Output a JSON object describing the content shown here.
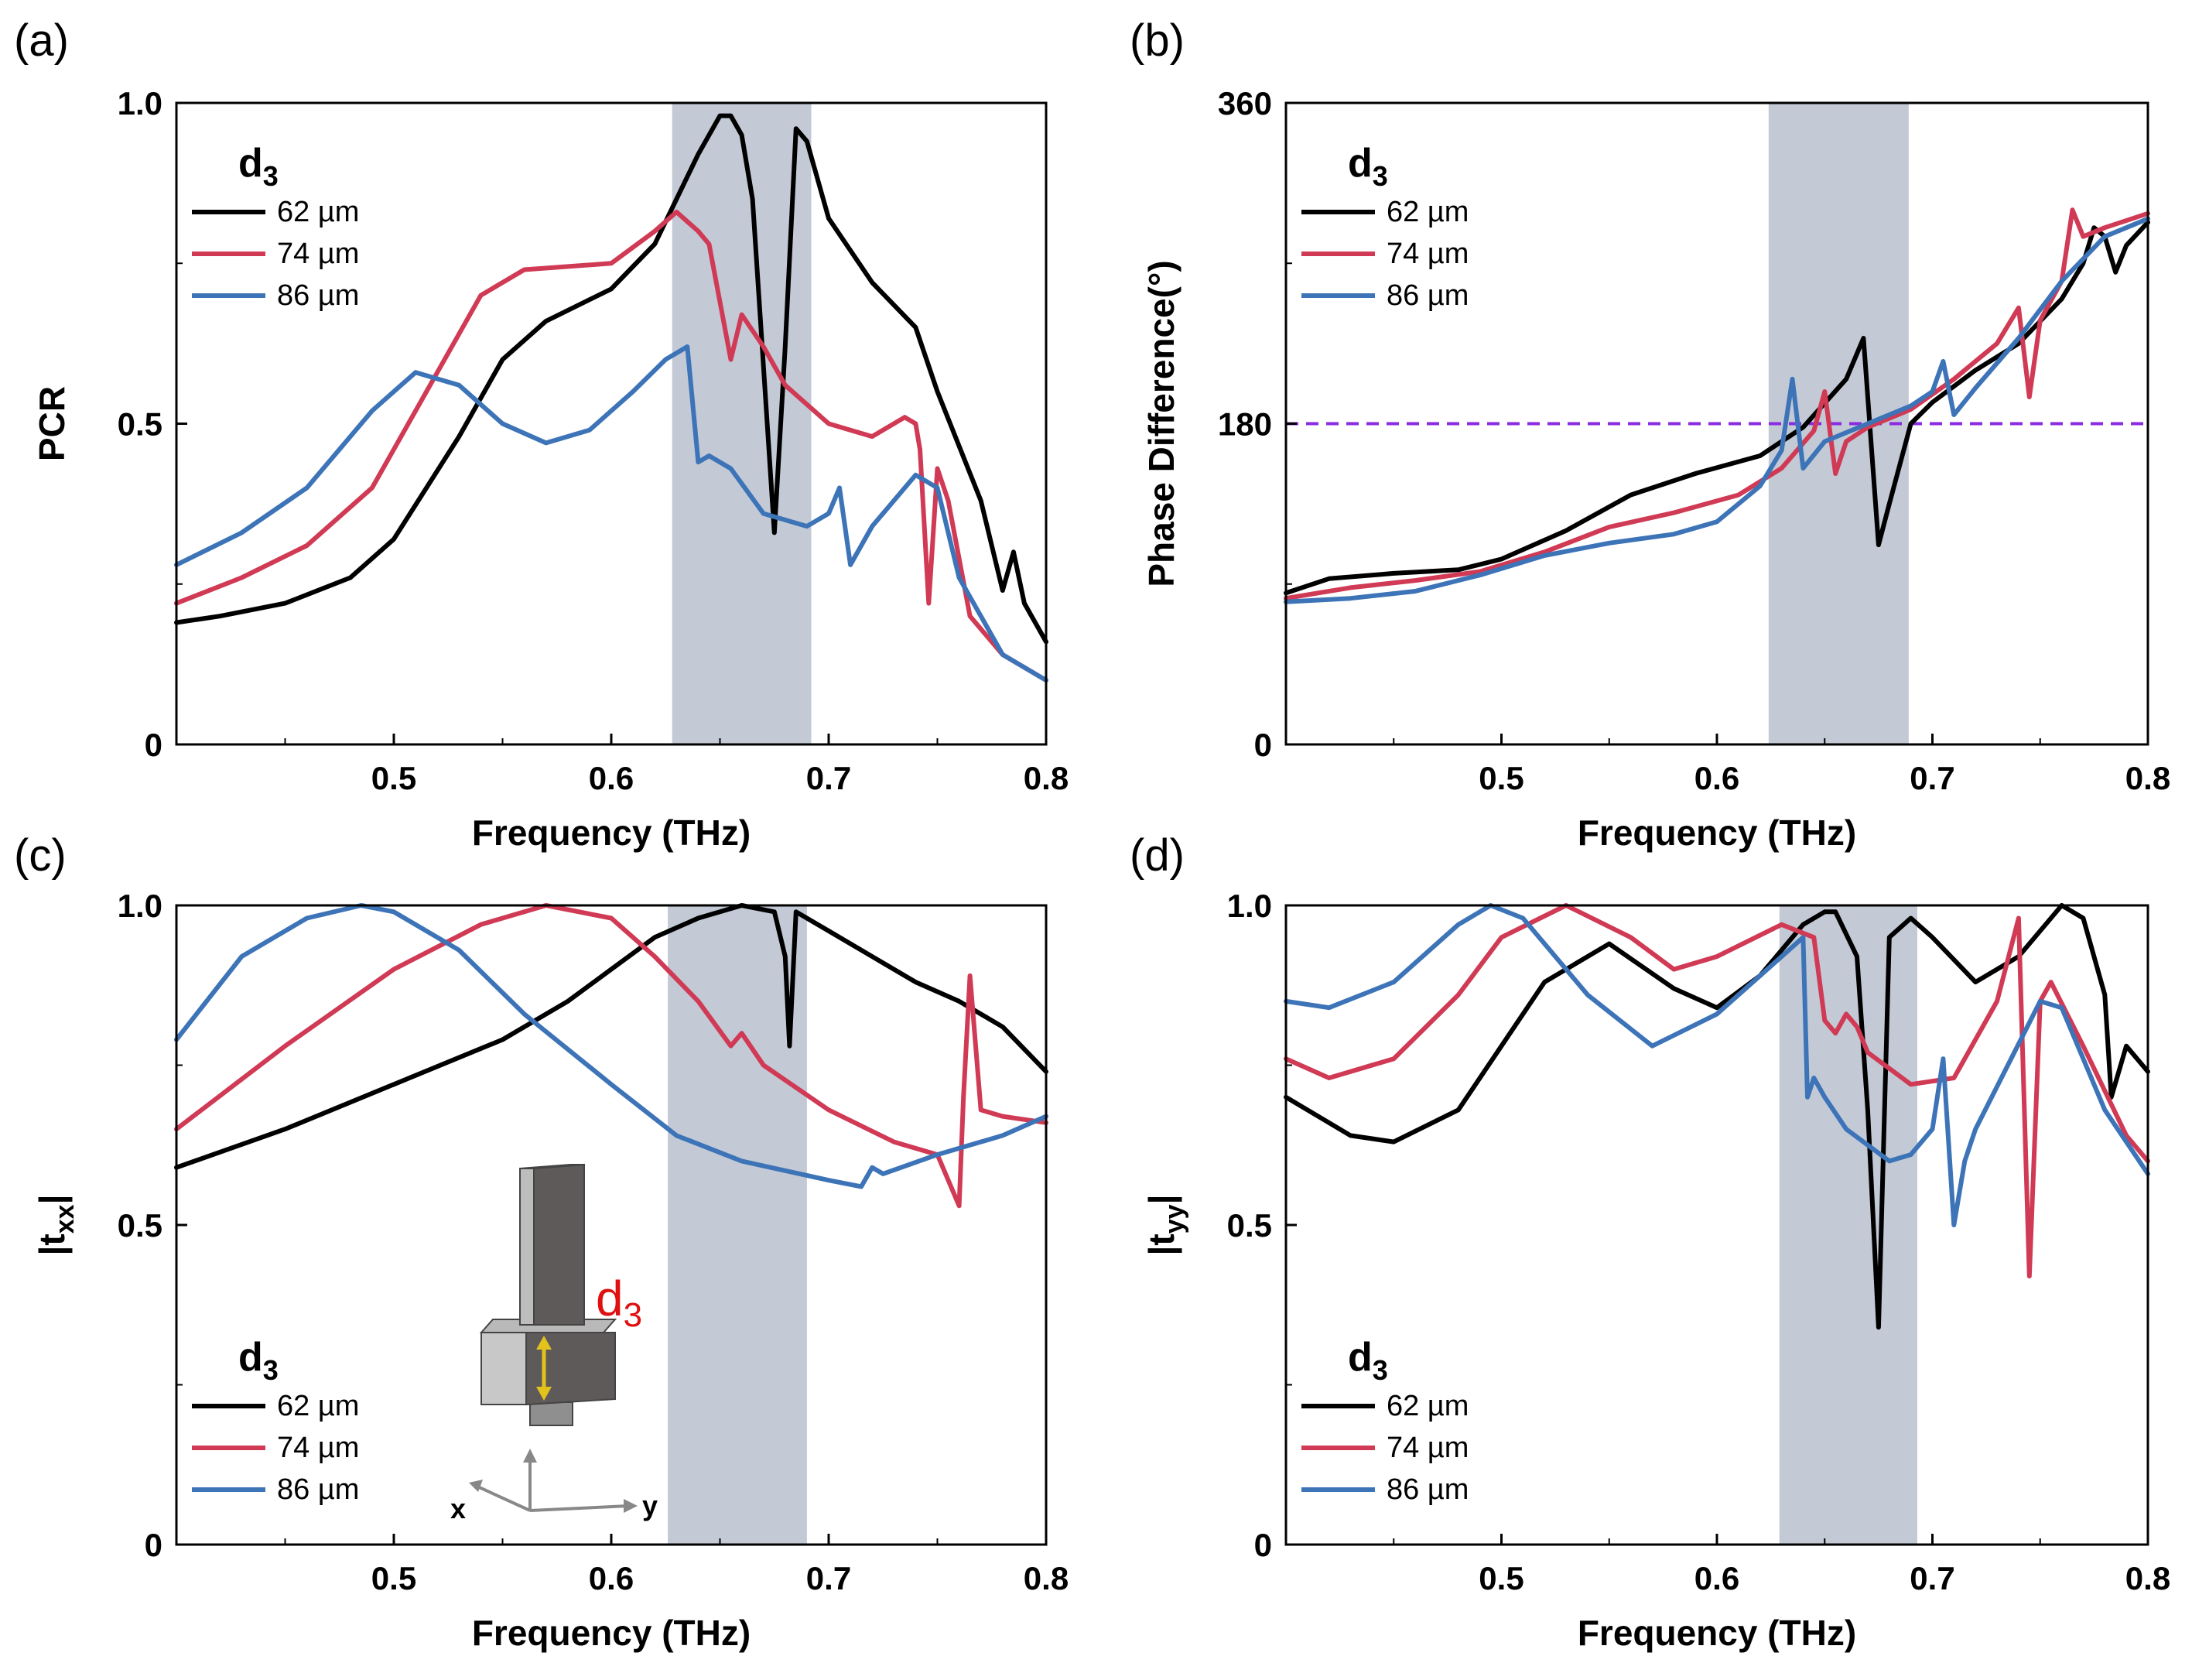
{
  "colors": {
    "s62": "#000000",
    "s74": "#d03a55",
    "s86": "#3d74b8",
    "band": "#c3cad6",
    "ref": "#8a2be2"
  },
  "chart_data": [
    {
      "panel": "(a)",
      "type": "line",
      "xlabel": "Frequency (THz)",
      "ylabel": "PCR",
      "xlim": [
        0.4,
        0.8
      ],
      "ylim": [
        0,
        1
      ],
      "xticks": [
        "0.5",
        "0.6",
        "0.7",
        "0.8"
      ],
      "yticks": [
        "0",
        "0.5",
        "1.0"
      ],
      "ytick_values": [
        0,
        0.5,
        1.0
      ],
      "band": [
        0.628,
        0.692
      ],
      "legend": {
        "title_main": "d",
        "title_sub": "3",
        "position": "top-left"
      },
      "series": [
        {
          "name": "62 µm",
          "color_key": "s62",
          "x": [
            0.4,
            0.42,
            0.45,
            0.48,
            0.5,
            0.53,
            0.55,
            0.57,
            0.6,
            0.62,
            0.64,
            0.65,
            0.655,
            0.66,
            0.665,
            0.675,
            0.68,
            0.685,
            0.69,
            0.7,
            0.72,
            0.74,
            0.75,
            0.77,
            0.78,
            0.785,
            0.79,
            0.8
          ],
          "y": [
            0.19,
            0.2,
            0.22,
            0.26,
            0.32,
            0.48,
            0.6,
            0.66,
            0.71,
            0.78,
            0.92,
            0.98,
            0.98,
            0.95,
            0.85,
            0.33,
            0.62,
            0.96,
            0.94,
            0.82,
            0.72,
            0.65,
            0.55,
            0.38,
            0.24,
            0.3,
            0.22,
            0.16
          ]
        },
        {
          "name": "74 µm",
          "color_key": "s74",
          "x": [
            0.4,
            0.43,
            0.46,
            0.49,
            0.52,
            0.54,
            0.56,
            0.6,
            0.62,
            0.63,
            0.64,
            0.645,
            0.655,
            0.66,
            0.67,
            0.68,
            0.7,
            0.72,
            0.735,
            0.74,
            0.742,
            0.746,
            0.75,
            0.755,
            0.765,
            0.78,
            0.8
          ],
          "y": [
            0.22,
            0.26,
            0.31,
            0.4,
            0.58,
            0.7,
            0.74,
            0.75,
            0.8,
            0.83,
            0.8,
            0.78,
            0.6,
            0.67,
            0.62,
            0.56,
            0.5,
            0.48,
            0.51,
            0.5,
            0.46,
            0.22,
            0.43,
            0.38,
            0.2,
            0.14,
            0.1
          ]
        },
        {
          "name": "86 µm",
          "color_key": "s86",
          "x": [
            0.4,
            0.43,
            0.46,
            0.49,
            0.51,
            0.53,
            0.55,
            0.57,
            0.59,
            0.61,
            0.625,
            0.635,
            0.64,
            0.645,
            0.655,
            0.67,
            0.69,
            0.7,
            0.705,
            0.71,
            0.72,
            0.74,
            0.75,
            0.76,
            0.78,
            0.8
          ],
          "y": [
            0.28,
            0.33,
            0.4,
            0.52,
            0.58,
            0.56,
            0.5,
            0.47,
            0.49,
            0.55,
            0.6,
            0.62,
            0.44,
            0.45,
            0.43,
            0.36,
            0.34,
            0.36,
            0.4,
            0.28,
            0.34,
            0.42,
            0.4,
            0.26,
            0.14,
            0.1
          ]
        }
      ]
    },
    {
      "panel": "(b)",
      "type": "line",
      "xlabel": "Frequency (THz)",
      "ylabel": "Phase Difference(°)",
      "xlim": [
        0.4,
        0.8
      ],
      "ylim": [
        0,
        360
      ],
      "xticks": [
        "0.5",
        "0.6",
        "0.7",
        "0.8"
      ],
      "yticks": [
        "0",
        "180",
        "360"
      ],
      "ytick_values": [
        0,
        180,
        360
      ],
      "band": [
        0.624,
        0.689
      ],
      "ref_line": 180,
      "legend": {
        "title_main": "d",
        "title_sub": "3",
        "position": "top-left"
      },
      "series": [
        {
          "name": "62 µm",
          "color_key": "s62",
          "x": [
            0.4,
            0.42,
            0.45,
            0.48,
            0.5,
            0.53,
            0.56,
            0.59,
            0.62,
            0.64,
            0.66,
            0.668,
            0.675,
            0.68,
            0.69,
            0.7,
            0.72,
            0.74,
            0.76,
            0.77,
            0.775,
            0.78,
            0.785,
            0.79,
            0.8
          ],
          "y": [
            85,
            93,
            96,
            98,
            104,
            120,
            140,
            152,
            162,
            178,
            205,
            228,
            112,
            135,
            180,
            192,
            210,
            225,
            250,
            270,
            290,
            285,
            265,
            280,
            293
          ]
        },
        {
          "name": "74 µm",
          "color_key": "s74",
          "x": [
            0.4,
            0.43,
            0.46,
            0.49,
            0.52,
            0.55,
            0.58,
            0.61,
            0.63,
            0.645,
            0.65,
            0.655,
            0.66,
            0.67,
            0.69,
            0.71,
            0.73,
            0.74,
            0.745,
            0.75,
            0.76,
            0.765,
            0.77,
            0.78,
            0.8
          ],
          "y": [
            82,
            88,
            92,
            97,
            108,
            122,
            130,
            140,
            155,
            176,
            198,
            152,
            170,
            178,
            188,
            205,
            225,
            245,
            195,
            238,
            260,
            300,
            285,
            290,
            298
          ]
        },
        {
          "name": "86 µm",
          "color_key": "s86",
          "x": [
            0.4,
            0.43,
            0.46,
            0.49,
            0.52,
            0.55,
            0.58,
            0.6,
            0.62,
            0.63,
            0.635,
            0.64,
            0.65,
            0.67,
            0.69,
            0.7,
            0.705,
            0.71,
            0.72,
            0.74,
            0.76,
            0.78,
            0.8
          ],
          "y": [
            80,
            82,
            86,
            95,
            106,
            113,
            118,
            125,
            145,
            165,
            205,
            155,
            170,
            180,
            190,
            198,
            215,
            185,
            200,
            228,
            260,
            285,
            295
          ]
        }
      ]
    },
    {
      "panel": "(c)",
      "type": "line",
      "xlabel": "Frequency (THz)",
      "ylabel_main": "|t",
      "ylabel_sub": "xx",
      "ylabel_end": "|",
      "xlim": [
        0.4,
        0.8
      ],
      "ylim": [
        0,
        1
      ],
      "xticks": [
        "0.5",
        "0.6",
        "0.7",
        "0.8"
      ],
      "yticks": [
        "0",
        "0.5",
        "1.0"
      ],
      "ytick_values": [
        0,
        0.5,
        1.0
      ],
      "band": [
        0.626,
        0.69
      ],
      "legend": {
        "title_main": "d",
        "title_sub": "3",
        "position": "bottom-left"
      },
      "inset": {
        "label_main": "d",
        "label_sub": "3",
        "axis_x": "x",
        "axis_y": "y"
      },
      "series": [
        {
          "name": "62 µm",
          "color_key": "s62",
          "x": [
            0.4,
            0.45,
            0.5,
            0.55,
            0.58,
            0.6,
            0.62,
            0.64,
            0.66,
            0.675,
            0.68,
            0.682,
            0.685,
            0.7,
            0.72,
            0.74,
            0.76,
            0.78,
            0.8
          ],
          "y": [
            0.59,
            0.65,
            0.72,
            0.79,
            0.85,
            0.9,
            0.95,
            0.98,
            1.0,
            0.99,
            0.92,
            0.78,
            0.99,
            0.96,
            0.92,
            0.88,
            0.85,
            0.81,
            0.74
          ]
        },
        {
          "name": "74 µm",
          "color_key": "s74",
          "x": [
            0.4,
            0.45,
            0.5,
            0.54,
            0.57,
            0.6,
            0.62,
            0.64,
            0.655,
            0.66,
            0.67,
            0.7,
            0.73,
            0.75,
            0.76,
            0.762,
            0.765,
            0.77,
            0.78,
            0.8
          ],
          "y": [
            0.65,
            0.78,
            0.9,
            0.97,
            1.0,
            0.98,
            0.92,
            0.85,
            0.78,
            0.8,
            0.75,
            0.68,
            0.63,
            0.61,
            0.53,
            0.7,
            0.89,
            0.68,
            0.67,
            0.66
          ]
        },
        {
          "name": "86 µm",
          "color_key": "s86",
          "x": [
            0.4,
            0.43,
            0.46,
            0.485,
            0.5,
            0.53,
            0.56,
            0.6,
            0.63,
            0.66,
            0.7,
            0.715,
            0.72,
            0.725,
            0.75,
            0.78,
            0.8
          ],
          "y": [
            0.79,
            0.92,
            0.98,
            1.0,
            0.99,
            0.93,
            0.83,
            0.72,
            0.64,
            0.6,
            0.57,
            0.56,
            0.59,
            0.58,
            0.61,
            0.64,
            0.67
          ]
        }
      ]
    },
    {
      "panel": "(d)",
      "type": "line",
      "xlabel": "Frequency (THz)",
      "ylabel_main": "|t",
      "ylabel_sub": "yy",
      "ylabel_end": "|",
      "xlim": [
        0.4,
        0.8
      ],
      "ylim": [
        0,
        1
      ],
      "xticks": [
        "0.5",
        "0.6",
        "0.7",
        "0.8"
      ],
      "yticks": [
        "0",
        "0.5",
        "1.0"
      ],
      "ytick_values": [
        0,
        0.5,
        1.0
      ],
      "band": [
        0.629,
        0.693
      ],
      "legend": {
        "title_main": "d",
        "title_sub": "3",
        "position": "bottom-left"
      },
      "series": [
        {
          "name": "62 µm",
          "color_key": "s62",
          "x": [
            0.4,
            0.43,
            0.45,
            0.48,
            0.5,
            0.52,
            0.55,
            0.58,
            0.6,
            0.62,
            0.64,
            0.65,
            0.655,
            0.665,
            0.67,
            0.675,
            0.68,
            0.69,
            0.7,
            0.72,
            0.74,
            0.76,
            0.77,
            0.78,
            0.783,
            0.79,
            0.8
          ],
          "y": [
            0.7,
            0.64,
            0.63,
            0.68,
            0.78,
            0.88,
            0.94,
            0.87,
            0.84,
            0.89,
            0.97,
            0.99,
            0.99,
            0.92,
            0.68,
            0.34,
            0.95,
            0.98,
            0.95,
            0.88,
            0.92,
            1.0,
            0.98,
            0.86,
            0.7,
            0.78,
            0.74
          ]
        },
        {
          "name": "74 µm",
          "color_key": "s74",
          "x": [
            0.4,
            0.42,
            0.45,
            0.48,
            0.5,
            0.53,
            0.56,
            0.58,
            0.6,
            0.63,
            0.645,
            0.65,
            0.655,
            0.66,
            0.665,
            0.67,
            0.69,
            0.71,
            0.73,
            0.74,
            0.745,
            0.75,
            0.755,
            0.77,
            0.79,
            0.8
          ],
          "y": [
            0.76,
            0.73,
            0.76,
            0.86,
            0.95,
            1.0,
            0.95,
            0.9,
            0.92,
            0.97,
            0.95,
            0.82,
            0.8,
            0.83,
            0.81,
            0.77,
            0.72,
            0.73,
            0.85,
            0.98,
            0.42,
            0.85,
            0.88,
            0.78,
            0.64,
            0.6
          ]
        },
        {
          "name": "86 µm",
          "color_key": "s86",
          "x": [
            0.4,
            0.42,
            0.45,
            0.48,
            0.495,
            0.51,
            0.54,
            0.57,
            0.6,
            0.63,
            0.64,
            0.642,
            0.645,
            0.65,
            0.66,
            0.68,
            0.69,
            0.7,
            0.705,
            0.71,
            0.715,
            0.72,
            0.75,
            0.76,
            0.78,
            0.8
          ],
          "y": [
            0.85,
            0.84,
            0.88,
            0.97,
            1.0,
            0.98,
            0.86,
            0.78,
            0.83,
            0.92,
            0.95,
            0.7,
            0.73,
            0.7,
            0.65,
            0.6,
            0.61,
            0.65,
            0.76,
            0.5,
            0.6,
            0.65,
            0.85,
            0.84,
            0.68,
            0.58
          ]
        }
      ]
    }
  ]
}
